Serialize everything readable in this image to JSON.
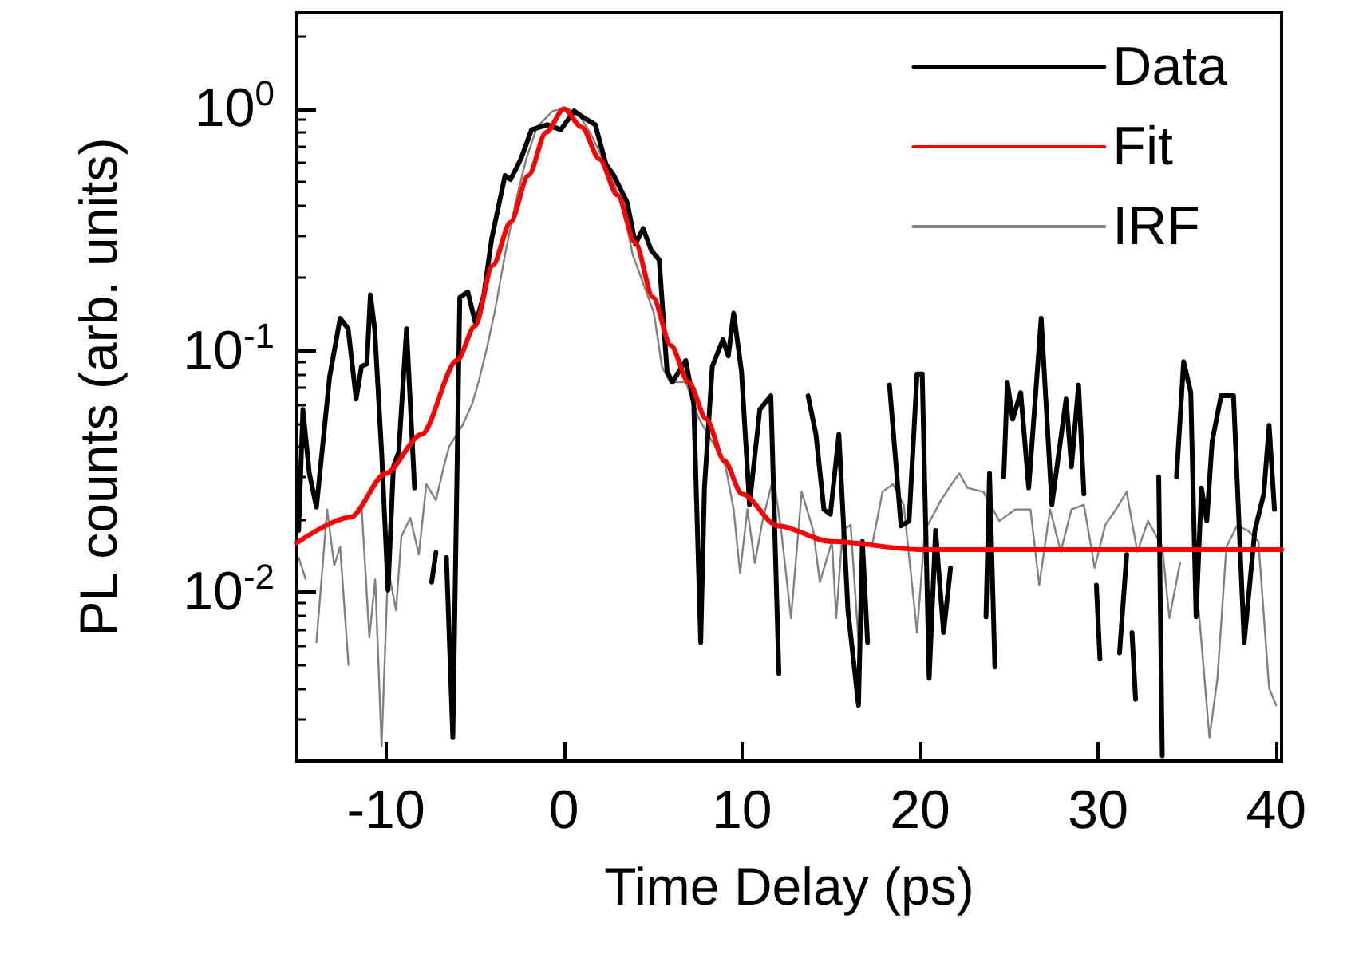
{
  "chart_data": {
    "type": "line",
    "xlabel": "Time Delay (ps)",
    "ylabel": "PL counts (arb. units)",
    "xlim": [
      -15,
      40.3
    ],
    "xticks": [
      -10,
      0,
      10,
      20,
      30,
      40
    ],
    "ylim": [
      0.002,
      2.5
    ],
    "yticks": [
      {
        "value": 0.01,
        "label": "10$^{-2}$"
      },
      {
        "value": 0.1,
        "label": "10$^{-1}$"
      },
      {
        "value": 1,
        "label": "10$^{0}$"
      }
    ],
    "log": "y",
    "grid": false,
    "legend": "top right",
    "marker": "none",
    "line_style": "solid",
    "series": [
      {
        "name": "Data",
        "color": "#000000",
        "x": [
          -14.9,
          -14.66,
          -14.3,
          -13.9,
          -13.16,
          -12.57,
          -12.12,
          -11.67,
          -11.37,
          -11.07,
          -10.87,
          -10.63,
          -10.24,
          -9.88,
          -9.58,
          -9.28,
          -8.84,
          -8.39,
          -7.9,
          -7.43,
          -7.19,
          -6.75,
          -6.6,
          -6.24,
          -5.85,
          -5.4,
          -4.96,
          -4.5,
          -4.06,
          -3.31,
          -3.0,
          -2.42,
          -1.82,
          -0.93,
          -0.18,
          0.57,
          1.01,
          1.76,
          2.36,
          2.8,
          3.55,
          4.01,
          4.45,
          4.9,
          5.35,
          5.79,
          6.09,
          6.84,
          7.29,
          7.68,
          7.89,
          8.33,
          8.93,
          9.23,
          9.53,
          9.97,
          10.42,
          11.0,
          11.62,
          12.07,
          13.4,
          13.71,
          14.15,
          14.6,
          14.96,
          15.44,
          15.95,
          16.54,
          16.76,
          17.05,
          17.6,
          18.28,
          18.93,
          19.38,
          19.83,
          20.12,
          20.51,
          20.87,
          21.32,
          21.71,
          22.7,
          23.7,
          23.9,
          24.2,
          24.45,
          24.7,
          24.9,
          25.2,
          25.65,
          26.1,
          26.8,
          27.4,
          28.2,
          28.5,
          28.9,
          29.2,
          29.5,
          29.9,
          30.1,
          30.6,
          31.2,
          31.6,
          31.75,
          31.9,
          32.1,
          32.8,
          33.4,
          33.6,
          34.1,
          34.4,
          34.8,
          35.2,
          35.5,
          35.8,
          36.1,
          36.4,
          36.9,
          37.6,
          38.2,
          38.8,
          39.3,
          39.6,
          39.9
        ],
        "values": [
          0.018,
          0.057,
          0.031,
          0.0225,
          0.078,
          0.136,
          0.123,
          0.063,
          0.086,
          0.088,
          0.17,
          0.123,
          0.038,
          0.0102,
          0.033,
          0.038,
          0.123,
          0.027,
          null,
          0.011,
          0.0146,
          null,
          0.0139,
          0.0025,
          0.166,
          0.175,
          0.129,
          0.17,
          0.29,
          0.53,
          0.51,
          0.62,
          0.82,
          0.86,
          0.82,
          0.98,
          0.93,
          0.86,
          0.59,
          0.53,
          0.41,
          0.276,
          0.32,
          0.26,
          0.237,
          0.082,
          0.074,
          0.091,
          0.06,
          0.0062,
          0.027,
          0.086,
          0.111,
          0.095,
          0.143,
          0.082,
          0.023,
          0.057,
          0.065,
          0.0046,
          null,
          0.065,
          0.045,
          0.022,
          0.021,
          0.045,
          0.0084,
          0.0034,
          0.0162,
          0.0062,
          null,
          0.072,
          0.0188,
          0.0197,
          0.08,
          0.08,
          0.0044,
          0.018,
          0.0068,
          0.0126,
          null,
          0.0079,
          0.031,
          0.0049,
          null,
          0.03,
          0.074,
          0.052,
          0.067,
          0.027,
          0.136,
          0.023,
          0.063,
          0.033,
          0.072,
          0.0255,
          null,
          0.0107,
          0.0053,
          null,
          0.0056,
          0.0143,
          null,
          0.0068,
          0.0036,
          null,
          0.03,
          0.0021,
          null,
          0.03,
          0.09,
          0.067,
          0.0079,
          0.027,
          0.0197,
          0.042,
          0.065,
          0.065,
          0.0062,
          0.018,
          0.0255,
          0.049,
          0.022
        ]
      },
      {
        "name": "Fit",
        "color": "#ff0000",
        "x": [
          -15,
          -12,
          -10,
          -8,
          -6,
          -5,
          -4,
          -3,
          -2,
          -1,
          0,
          1,
          2,
          3,
          4,
          5,
          6,
          7,
          8,
          9,
          10,
          12,
          15,
          20,
          40.3
        ],
        "values": [
          0.016,
          0.0204,
          0.031,
          0.045,
          0.091,
          0.126,
          0.225,
          0.34,
          0.53,
          0.8,
          1,
          0.84,
          0.62,
          0.44,
          0.28,
          0.166,
          0.105,
          0.074,
          0.052,
          0.035,
          0.0255,
          0.0188,
          0.0162,
          0.015,
          0.015
        ]
      },
      {
        "name": "IRF",
        "color": "#808080",
        "x": [
          -14.9,
          -14.5,
          -14.3,
          -13.9,
          -13.3,
          -12.9,
          -12.57,
          -12.1,
          -11.8,
          -11.37,
          -10.93,
          -10.6,
          -10.24,
          -9.88,
          -9.43,
          -9.13,
          -8.63,
          -8.15,
          -7.73,
          -7.19,
          -6.75,
          -6.45,
          -5.7,
          -5.16,
          -4.8,
          -4.36,
          -3.9,
          -3.31,
          -2.72,
          -2.12,
          -1.52,
          -0.63,
          0,
          0.72,
          1.46,
          2.06,
          2.66,
          3.4,
          3.86,
          4.45,
          5.05,
          5.5,
          5.95,
          6.84,
          7.59,
          8.33,
          9.08,
          9.53,
          9.89,
          10.3,
          10.72,
          11.17,
          11.77,
          12.2,
          12.75,
          13.35,
          14.0,
          14.37,
          15.05,
          15.29,
          15.65,
          16.1,
          16.63,
          16.9,
          17.29,
          17.89,
          18.48,
          19.08,
          19.83,
          20.27,
          21.17,
          21.77,
          22.21,
          22.66,
          23.56,
          24.45,
          25.35,
          26.2,
          26.69,
          27.3,
          27.9,
          28.5,
          29.2,
          29.8,
          30.4,
          31.0,
          31.6,
          32.2,
          32.8,
          33.6,
          34.0,
          34.6,
          35.05,
          35.65,
          36.25,
          36.7,
          37.2,
          37.8,
          38.4,
          39.0,
          39.6,
          40.0
        ],
        "values": [
          0.0139,
          0.0113,
          null,
          0.0062,
          0.022,
          0.0129,
          0.0154,
          0.005,
          null,
          0.023,
          0.0065,
          0.0113,
          0.0023,
          0.0126,
          0.0084,
          0.017,
          0.0203,
          0.0143,
          0.028,
          0.024,
          0.033,
          0.04,
          0.049,
          0.06,
          0.074,
          0.1,
          0.143,
          0.249,
          0.41,
          0.62,
          0.84,
          0.98,
          1.0,
          0.98,
          0.8,
          0.65,
          0.53,
          0.37,
          0.249,
          0.19,
          0.143,
          0.086,
          0.074,
          0.074,
          0.052,
          0.042,
          0.033,
          0.022,
          0.012,
          0.022,
          0.0132,
          0.02,
          0.03,
          0.018,
          0.0078,
          0.026,
          0.018,
          0.011,
          0.0162,
          0.0078,
          0.018,
          0.019,
          0.005,
          null,
          0.0154,
          0.026,
          0.028,
          0.023,
          0.0068,
          0.018,
          0.024,
          0.028,
          0.031,
          0.027,
          0.026,
          0.0197,
          0.022,
          0.022,
          0.0107,
          0.022,
          0.0147,
          0.022,
          0.023,
          0.0126,
          0.019,
          0.022,
          0.026,
          0.0147,
          0.0197,
          0.0154,
          0.0078,
          0.0132,
          null,
          0.0084,
          0.0025,
          0.0044,
          0.0154,
          0.0188,
          0.018,
          0.0162,
          0.004,
          0.0034
        ]
      }
    ]
  }
}
